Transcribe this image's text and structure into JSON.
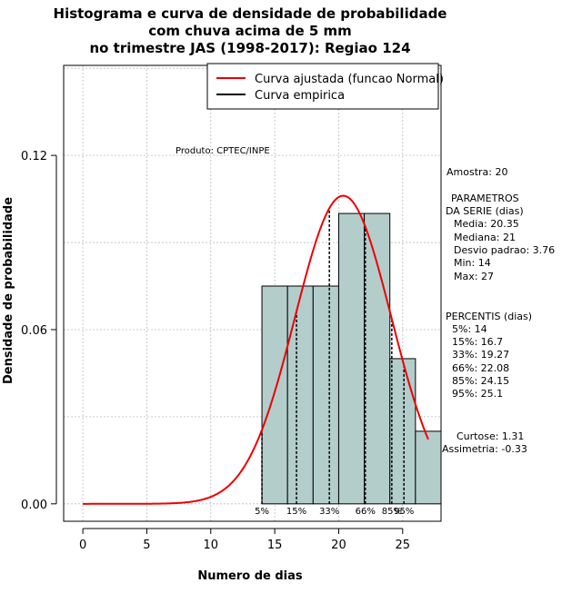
{
  "chart_data": {
    "type": "bar",
    "title_lines": [
      "Histograma e curva de densidade de probabilidade",
      "com chuva acima de 5 mm",
      "no trimestre JAS (1998-2017): Regiao 124"
    ],
    "xlabel": "Numero de dias",
    "ylabel": "Densidade de probabilidade",
    "xlim": [
      -1.5,
      28
    ],
    "ylim": [
      -0.006,
      0.151
    ],
    "x_ticks": [
      0,
      5,
      10,
      15,
      20,
      25
    ],
    "x_tick_labels": [
      "0",
      "5",
      "10",
      "15",
      "20",
      "25"
    ],
    "y_ticks": [
      0.0,
      0.06,
      0.12
    ],
    "y_tick_labels": [
      "0.00",
      "0.06",
      "0.12"
    ],
    "grid": true,
    "histogram": {
      "bins": [
        {
          "x0": 14,
          "x1": 16,
          "density": 0.075
        },
        {
          "x0": 16,
          "x1": 18,
          "density": 0.075
        },
        {
          "x0": 18,
          "x1": 20,
          "density": 0.075
        },
        {
          "x0": 20,
          "x1": 22,
          "density": 0.1
        },
        {
          "x0": 22,
          "x1": 24,
          "density": 0.1
        },
        {
          "x0": 24,
          "x1": 26,
          "density": 0.05
        },
        {
          "x0": 26,
          "x1": 28,
          "density": 0.025
        }
      ],
      "fill": "#b3cdcb",
      "stroke": "#000000"
    },
    "series": [
      {
        "name": "Curva ajustada (funcao Normal)",
        "color": "#ee0000",
        "type": "normal",
        "mean": 20.35,
        "sd": 3.76,
        "x_range": [
          0,
          27
        ]
      },
      {
        "name": "Curva empirica",
        "color": "#000000"
      }
    ],
    "legend": "top-right",
    "percentile_lines": [
      {
        "label": "5%",
        "x": 14
      },
      {
        "label": "15%",
        "x": 16.7
      },
      {
        "label": "33%",
        "x": 19.27
      },
      {
        "label": "66%",
        "x": 22.08
      },
      {
        "label": "85%",
        "x": 24.15
      },
      {
        "label": "95%",
        "x": 25.1
      }
    ]
  },
  "annotations": {
    "produto": "Produto: CPTEC/INPE",
    "amostra": "Amostra: 20",
    "parametros_title_1": "PARAMETROS",
    "parametros_title_2": "DA SERIE (dias)",
    "media": "Media: 20.35",
    "mediana": "Mediana: 21",
    "desvio": "Desvio padrao: 3.76",
    "min": "Min: 14",
    "max": "Max: 27",
    "percentis_title": "PERCENTIS (dias)",
    "p5": "5%: 14",
    "p15": "15%: 16.7",
    "p33": "33%: 19.27",
    "p66": "66%: 22.08",
    "p85": "85%: 24.15",
    "p95": "95%: 25.1",
    "curtose": "Curtose: 1.31",
    "assimetria": "Assimetria: -0.33"
  }
}
